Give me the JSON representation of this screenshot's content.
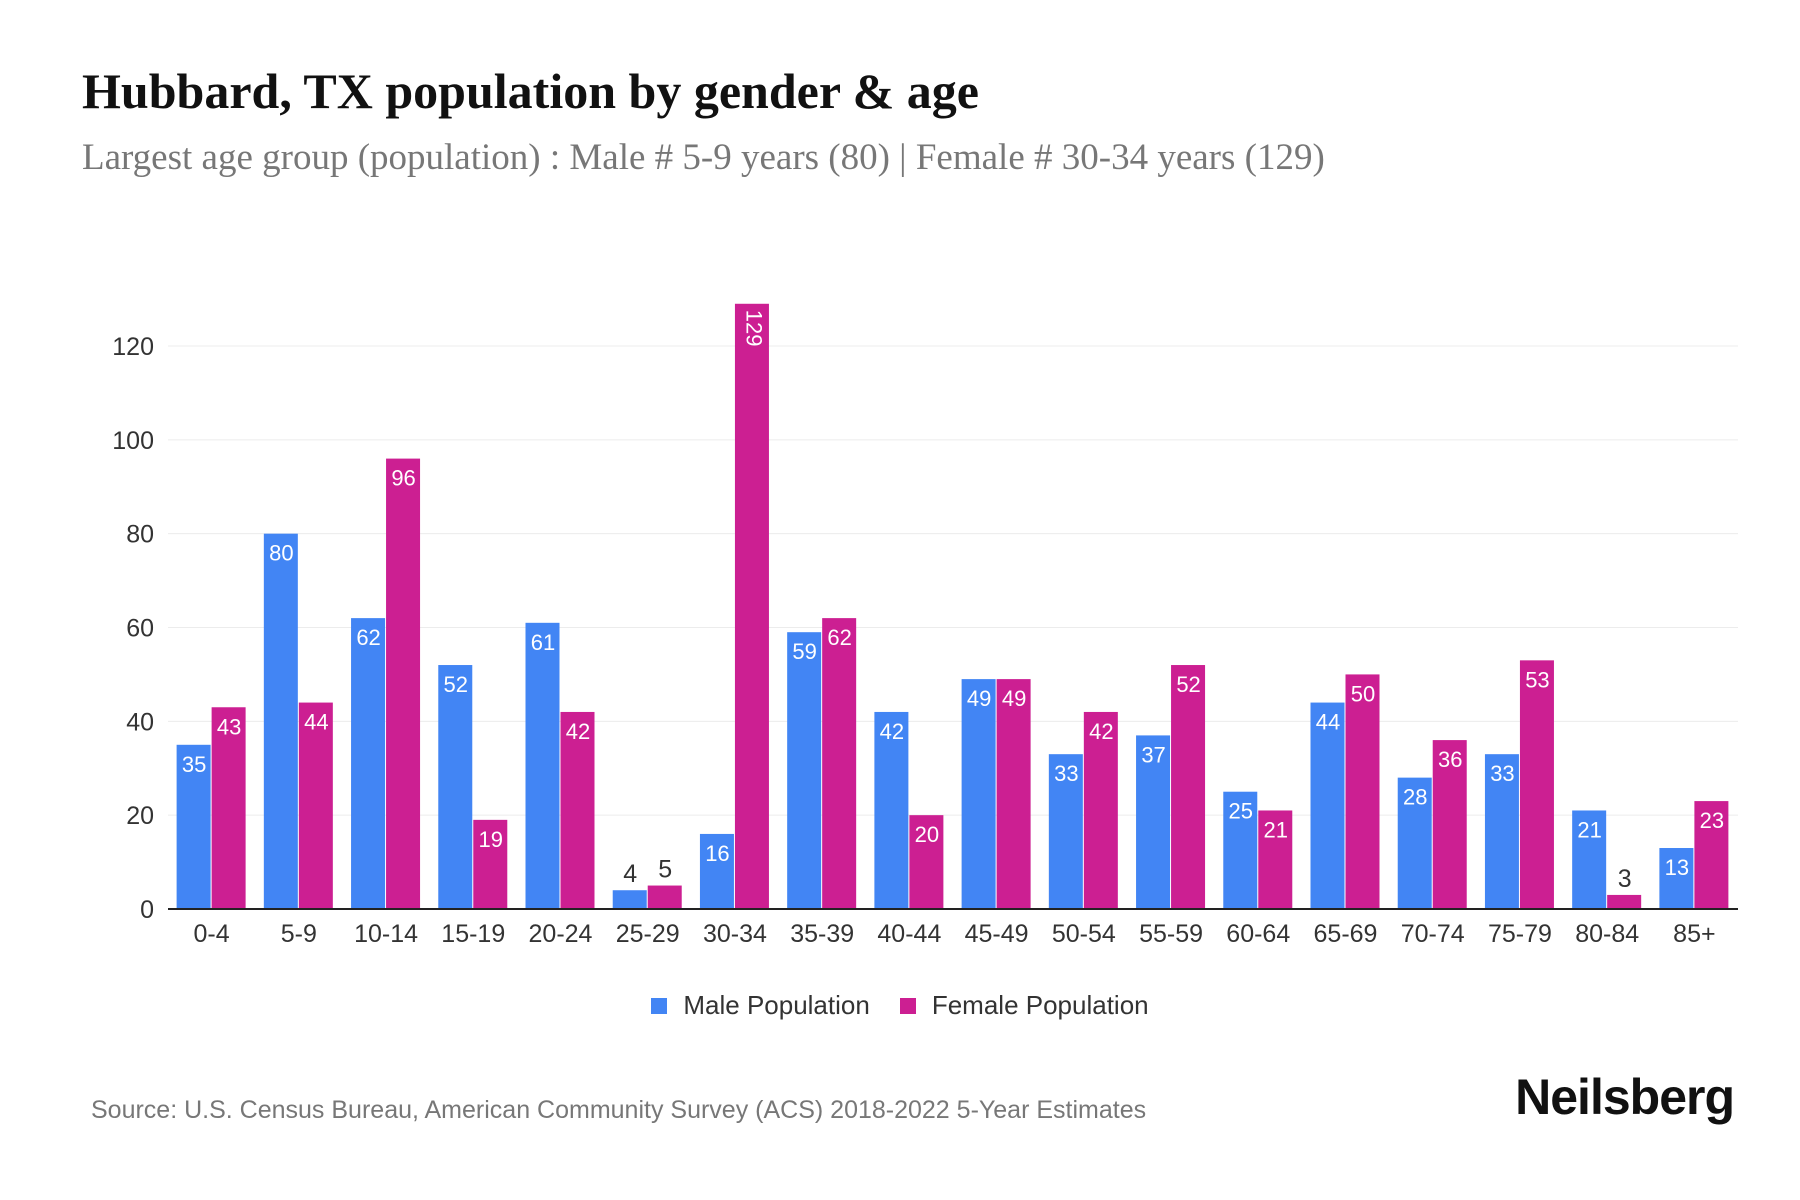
{
  "title": "Hubbard, TX population by gender & age",
  "subtitle": "Largest age group (population) : Male # 5-9 years (80) | Female # 30-34 years (129)",
  "source": "Source: U.S. Census Bureau, American Community Survey (ACS) 2018-2022 5-Year Estimates",
  "logo": "Neilsberg",
  "chart_data": {
    "type": "bar",
    "categories": [
      "0-4",
      "5-9",
      "10-14",
      "15-19",
      "20-24",
      "25-29",
      "30-34",
      "35-39",
      "40-44",
      "45-49",
      "50-54",
      "55-59",
      "60-64",
      "65-69",
      "70-74",
      "75-79",
      "80-84",
      "85+"
    ],
    "series": [
      {
        "name": "Male Population",
        "color": "#4285F4",
        "values": [
          35,
          80,
          62,
          52,
          61,
          4,
          16,
          59,
          42,
          49,
          33,
          37,
          25,
          44,
          28,
          33,
          21,
          13
        ]
      },
      {
        "name": "Female Population",
        "color": "#CC1F92",
        "values": [
          43,
          44,
          96,
          19,
          42,
          5,
          129,
          62,
          20,
          49,
          42,
          52,
          21,
          50,
          36,
          53,
          3,
          23
        ]
      }
    ],
    "yticks": [
      0,
      20,
      40,
      60,
      80,
      100,
      120
    ],
    "ylim": [
      0,
      130
    ],
    "grid": true,
    "legend": "bottom",
    "data_labels": true
  }
}
